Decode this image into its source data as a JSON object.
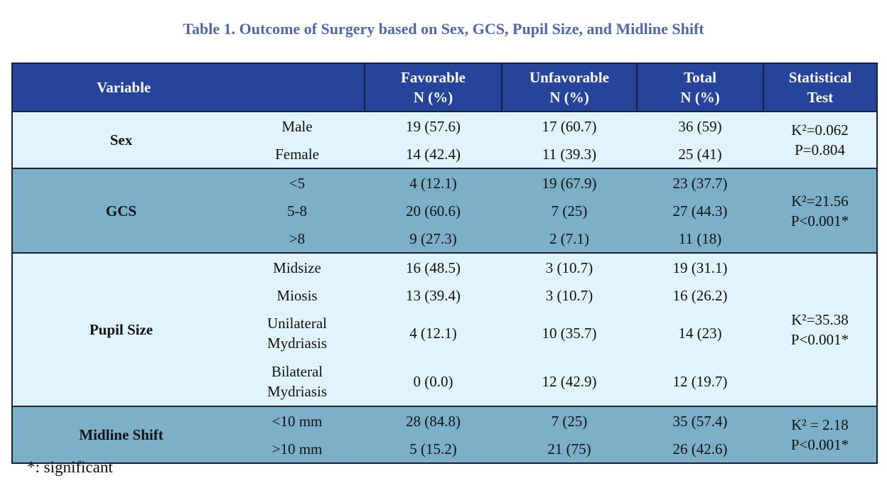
{
  "title": "Table 1. Outcome of Surgery based on Sex, GCS, Pupil Size, and Midline Shift",
  "headers": {
    "variable": "Variable",
    "favorable_1": "Favorable",
    "favorable_2": "N (%)",
    "unfavorable_1": "Unfavorable",
    "unfavorable_2": "N (%)",
    "total_1": "Total",
    "total_2": "N (%)",
    "stat_1": "Statistical",
    "stat_2": "Test"
  },
  "groups": [
    {
      "variable": "Sex",
      "stat_line1": "K²=0.062",
      "stat_line2": "P=0.804",
      "rows": [
        {
          "category": "Male",
          "favorable": "19 (57.6)",
          "unfavorable": "17 (60.7)",
          "total": "36 (59)"
        },
        {
          "category": "Female",
          "favorable": "14 (42.4)",
          "unfavorable": "11 (39.3)",
          "total": "25 (41)"
        }
      ]
    },
    {
      "variable": "GCS",
      "stat_line1": "K²=21.56",
      "stat_line2": "P<0.001*",
      "rows": [
        {
          "category": "<5",
          "favorable": "4 (12.1)",
          "unfavorable": "19 (67.9)",
          "total": "23 (37.7)"
        },
        {
          "category": "5-8",
          "favorable": "20 (60.6)",
          "unfavorable": "7 (25)",
          "total": "27 (44.3)"
        },
        {
          "category": ">8",
          "favorable": "9 (27.3)",
          "unfavorable": "2 (7.1)",
          "total": "11 (18)"
        }
      ]
    },
    {
      "variable": "Pupil Size",
      "stat_line1": "K²=35.38",
      "stat_line2": "P<0.001*",
      "rows": [
        {
          "category_1": "Midsize",
          "category_2": "",
          "favorable": "16 (48.5)",
          "unfavorable": "3 (10.7)",
          "total": "19 (31.1)"
        },
        {
          "category_1": "Miosis",
          "category_2": "",
          "favorable": "13 (39.4)",
          "unfavorable": "3 (10.7)",
          "total": "16 (26.2)"
        },
        {
          "category_1": "Unilateral",
          "category_2": "Mydriasis",
          "favorable": "4 (12.1)",
          "unfavorable": "10 (35.7)",
          "total": "14 (23)"
        },
        {
          "category_1": "Bilateral",
          "category_2": "Mydriasis",
          "favorable": "0 (0.0)",
          "unfavorable": "12 (42.9)",
          "total": "12 (19.7)"
        }
      ]
    },
    {
      "variable": "Midline Shift",
      "stat_line1": "K² = 2.18",
      "stat_line2": "P<0.001*",
      "rows": [
        {
          "category": "<10 mm",
          "favorable": "28 (84.8)",
          "unfavorable": "7 (25)",
          "total": "35 (57.4)"
        },
        {
          "category": ">10 mm",
          "favorable": "5 (15.2)",
          "unfavorable": "21 (75)",
          "total": "26 (42.6)"
        }
      ]
    }
  ],
  "footnote": "*: significant",
  "colors": {
    "title": "#5068a8",
    "header_bg": "#25449a",
    "light_row": "#e1f4fb",
    "dark_row": "#7bb0c8",
    "border": "#1a1f3a"
  }
}
